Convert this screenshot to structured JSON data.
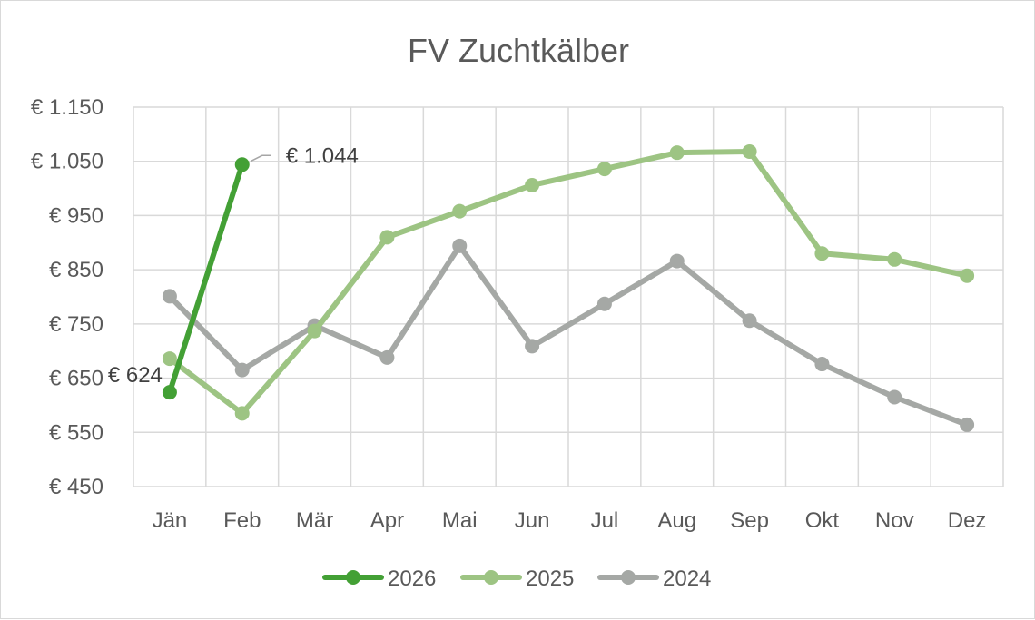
{
  "chart_data": {
    "type": "line",
    "title": "FV Zuchtkälber",
    "categories": [
      "Jän",
      "Feb",
      "Mär",
      "Apr",
      "Mai",
      "Jun",
      "Jul",
      "Aug",
      "Sep",
      "Okt",
      "Nov",
      "Dez"
    ],
    "ylim": [
      450,
      1150
    ],
    "yticks": [
      450,
      550,
      650,
      750,
      850,
      950,
      1050,
      1150
    ],
    "ytick_labels": [
      "€ 450",
      "€ 550",
      "€ 650",
      "€ 750",
      "€ 850",
      "€ 950",
      "€ 1.050",
      "€ 1.150"
    ],
    "grid": true,
    "legend_position": "bottom",
    "series": [
      {
        "name": "2026",
        "color": "#43a035",
        "values": [
          624,
          1044,
          null,
          null,
          null,
          null,
          null,
          null,
          null,
          null,
          null,
          null
        ]
      },
      {
        "name": "2025",
        "color": "#9dc483",
        "values": [
          686,
          585,
          737,
          910,
          958,
          1006,
          1036,
          1066,
          1068,
          880,
          869,
          839
        ]
      },
      {
        "name": "2024",
        "color": "#a5a8a5",
        "values": [
          801,
          665,
          747,
          688,
          894,
          709,
          787,
          866,
          756,
          676,
          615,
          564
        ]
      }
    ],
    "data_labels": [
      {
        "series": "2026",
        "index": 0,
        "text": "€ 624"
      },
      {
        "series": "2026",
        "index": 1,
        "text": "€ 1.044"
      }
    ]
  }
}
